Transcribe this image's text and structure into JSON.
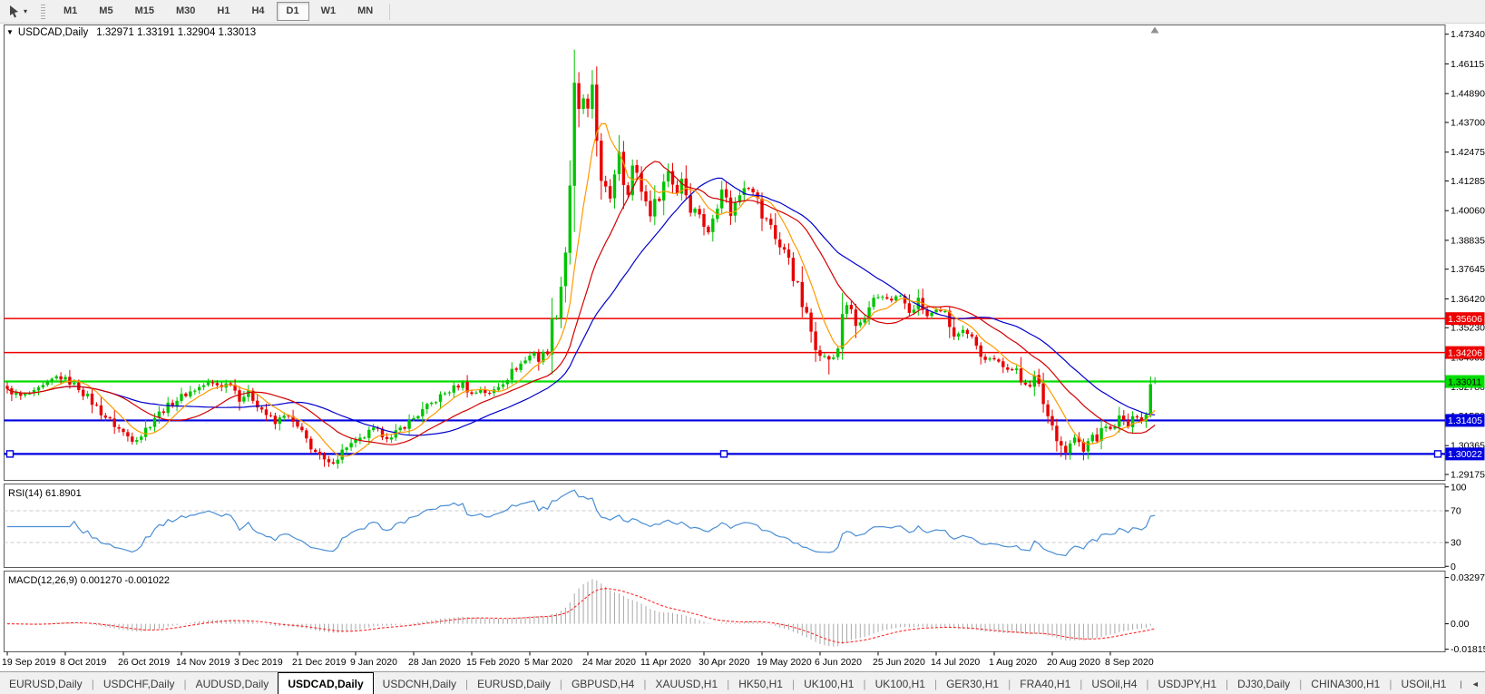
{
  "toolbar": {
    "timeframes": [
      "M1",
      "M5",
      "M15",
      "M30",
      "H1",
      "H4",
      "D1",
      "W1",
      "MN"
    ],
    "active_timeframe": "D1"
  },
  "chart": {
    "title_symbol": "USDCAD,Daily",
    "ohlc": "1.32971 1.33191 1.32904 1.33013",
    "dropdown_glyph": "▼",
    "price_ticks": [
      "1.47340",
      "1.46115",
      "1.44890",
      "1.43700",
      "1.42475",
      "1.41285",
      "1.40060",
      "1.38835",
      "1.37645",
      "1.36420",
      "1.35230",
      "1.34005",
      "1.32780",
      "1.31580",
      "1.30365",
      "1.29175"
    ],
    "hlines": [
      {
        "price": 1.35606,
        "label": "1.35606",
        "color": "#ee0000",
        "text": "#ffffff",
        "width": 1.5,
        "selected": false
      },
      {
        "price": 1.34206,
        "label": "1.34206",
        "color": "#ee0000",
        "text": "#ffffff",
        "width": 1.5,
        "selected": false
      },
      {
        "price": 1.33011,
        "label": "1.33011",
        "color": "#00dd00",
        "text": "#000000",
        "width": 2.2,
        "selected": false
      },
      {
        "price": 1.31405,
        "label": "1.31405",
        "color": "#0000e0",
        "text": "#ffffff",
        "width": 2.2,
        "selected": false
      },
      {
        "price": 1.30022,
        "label": "1.30022",
        "color": "#0000e0",
        "text": "#ffffff",
        "width": 2.2,
        "selected": true
      }
    ],
    "date_labels": [
      "19 Sep 2019",
      "8 Oct 2019",
      "26 Oct 2019",
      "14 Nov 2019",
      "3 Dec 2019",
      "21 Dec 2019",
      "9 Jan 2020",
      "28 Jan 2020",
      "15 Feb 2020",
      "5 Mar 2020",
      "24 Mar 2020",
      "11 Apr 2020",
      "30 Apr 2020",
      "19 May 2020",
      "6 Jun 2020",
      "25 Jun 2020",
      "14 Jul 2020",
      "1 Aug 2020",
      "20 Aug 2020",
      "8 Sep 2020"
    ]
  },
  "rsi": {
    "label": "RSI(14) 61.8901",
    "period": 14,
    "value": 61.8901,
    "ticks": [
      {
        "v": 100,
        "label": "100"
      },
      {
        "v": 70,
        "label": "70"
      },
      {
        "v": 30,
        "label": "30"
      },
      {
        "v": 0,
        "label": "0"
      }
    ],
    "levels": [
      70,
      30
    ]
  },
  "macd": {
    "label": "MACD(12,26,9) 0.001270 -0.001022",
    "value": 0.00127,
    "signal": -0.001022,
    "ticks": [
      {
        "v": 0.032972,
        "label": "0.032972"
      },
      {
        "v": 0,
        "label": "0.00"
      },
      {
        "v": -0.018154,
        "label": "-0.018154"
      }
    ]
  },
  "tabs": {
    "items": [
      "EURUSD,Daily",
      "USDCHF,Daily",
      "AUDUSD,Daily",
      "USDCAD,Daily",
      "USDCNH,Daily",
      "EURUSD,Daily",
      "GBPUSD,H4",
      "XAUUSD,H1",
      "HK50,H1",
      "UK100,H1",
      "UK100,H1",
      "GER30,H1",
      "FRA40,H1",
      "USOil,H4",
      "USDJPY,H1",
      "DJ30,Daily",
      "CHINA300,H1",
      "USOil,H1"
    ],
    "active_index": 3,
    "scroll_left_glyph": "◄",
    "scroll_right_glyph": "►"
  },
  "colors": {
    "up": "#00c400",
    "down": "#e80000",
    "ma_fast": "#ff9900",
    "ma_mid": "#d40000",
    "ma_slow": "#0000cc",
    "rsi_line": "#4a8ed5",
    "macd_bar": "#a8a8a8",
    "macd_signal": "#ff2a2a",
    "panel_border": "#5a5a5a",
    "level_dash": "#c8c8c8",
    "shift_marker": "#909090"
  },
  "chart_data": {
    "type": "candlestick",
    "symbol": "USDCAD",
    "timeframe": "Daily",
    "num_bars": 258,
    "bars_per_label": 13,
    "price_range_top": 1.4774,
    "price_range_bottom": 1.2891,
    "ma_periods": {
      "fast": 8,
      "mid": 20,
      "slow": 34
    },
    "levels": [
      1.35606,
      1.34206,
      1.33011,
      1.31405,
      1.30022
    ],
    "close_anchors": [
      [
        0,
        1.3265
      ],
      [
        3,
        1.324
      ],
      [
        6,
        1.3255
      ],
      [
        9,
        1.329
      ],
      [
        11,
        1.332
      ],
      [
        13,
        1.331
      ],
      [
        16,
        1.3275
      ],
      [
        19,
        1.3215
      ],
      [
        22,
        1.3155
      ],
      [
        25,
        1.3105
      ],
      [
        28,
        1.306
      ],
      [
        30,
        1.308
      ],
      [
        33,
        1.3155
      ],
      [
        36,
        1.32
      ],
      [
        39,
        1.324
      ],
      [
        42,
        1.3268
      ],
      [
        45,
        1.3295
      ],
      [
        48,
        1.3282
      ],
      [
        50,
        1.33
      ],
      [
        52,
        1.323
      ],
      [
        54,
        1.3255
      ],
      [
        56,
        1.321
      ],
      [
        58,
        1.3165
      ],
      [
        60,
        1.3125
      ],
      [
        62,
        1.3165
      ],
      [
        64,
        1.313
      ],
      [
        66,
        1.3085
      ],
      [
        68,
        1.3035
      ],
      [
        70,
        1.2985
      ],
      [
        72,
        1.2962
      ],
      [
        74,
        1.299
      ],
      [
        76,
        1.3035
      ],
      [
        79,
        1.306
      ],
      [
        82,
        1.3105
      ],
      [
        84,
        1.3082
      ],
      [
        86,
        1.3065
      ],
      [
        88,
        1.3105
      ],
      [
        91,
        1.315
      ],
      [
        94,
        1.3195
      ],
      [
        97,
        1.324
      ],
      [
        100,
        1.3275
      ],
      [
        102,
        1.3295
      ],
      [
        104,
        1.3248
      ],
      [
        106,
        1.3268
      ],
      [
        108,
        1.3248
      ],
      [
        110,
        1.3285
      ],
      [
        112,
        1.332
      ],
      [
        114,
        1.336
      ],
      [
        116,
        1.3388
      ],
      [
        118,
        1.3425
      ],
      [
        119,
        1.3385
      ],
      [
        120,
        1.341
      ],
      [
        121,
        1.3448
      ],
      [
        122,
        1.353
      ],
      [
        123,
        1.361
      ],
      [
        124,
        1.371
      ],
      [
        125,
        1.386
      ],
      [
        126,
        1.415
      ],
      [
        127,
        1.448
      ],
      [
        128,
        1.442
      ],
      [
        129,
        1.447
      ],
      [
        130,
        1.442
      ],
      [
        131,
        1.449
      ],
      [
        132,
        1.43
      ],
      [
        133,
        1.417
      ],
      [
        134,
        1.408
      ],
      [
        135,
        1.403
      ],
      [
        136,
        1.418
      ],
      [
        137,
        1.4255
      ],
      [
        138,
        1.414
      ],
      [
        139,
        1.409
      ],
      [
        140,
        1.419
      ],
      [
        141,
        1.4145
      ],
      [
        142,
        1.4095
      ],
      [
        144,
        1.399
      ],
      [
        146,
        1.4075
      ],
      [
        148,
        1.417
      ],
      [
        150,
        1.408
      ],
      [
        151,
        1.414
      ],
      [
        153,
        1.402
      ],
      [
        155,
        1.4
      ],
      [
        156,
        1.395
      ],
      [
        157,
        1.391
      ],
      [
        159,
        1.405
      ],
      [
        160,
        1.41
      ],
      [
        162,
        1.399
      ],
      [
        164,
        1.4075
      ],
      [
        165,
        1.411
      ],
      [
        167,
        1.41
      ],
      [
        169,
        1.398
      ],
      [
        171,
        1.395
      ],
      [
        173,
        1.3855
      ],
      [
        175,
        1.382
      ],
      [
        177,
        1.368
      ],
      [
        179,
        1.356
      ],
      [
        181,
        1.3455
      ],
      [
        183,
        1.34
      ],
      [
        185,
        1.339
      ],
      [
        186,
        1.344
      ],
      [
        187,
        1.359
      ],
      [
        188,
        1.362
      ],
      [
        190,
        1.353
      ],
      [
        192,
        1.3555
      ],
      [
        194,
        1.363
      ],
      [
        196,
        1.365
      ],
      [
        198,
        1.364
      ],
      [
        200,
        1.3655
      ],
      [
        202,
        1.358
      ],
      [
        204,
        1.364
      ],
      [
        206,
        1.357
      ],
      [
        208,
        1.359
      ],
      [
        210,
        1.358
      ],
      [
        212,
        1.35
      ],
      [
        214,
        1.351
      ],
      [
        216,
        1.35
      ],
      [
        218,
        1.34
      ],
      [
        220,
        1.339
      ],
      [
        222,
        1.338
      ],
      [
        224,
        1.336
      ],
      [
        226,
        1.334
      ],
      [
        227,
        1.33
      ],
      [
        229,
        1.329
      ],
      [
        230,
        1.332
      ],
      [
        231,
        1.327
      ],
      [
        232,
        1.322
      ],
      [
        233,
        1.316
      ],
      [
        234,
        1.312
      ],
      [
        235,
        1.308
      ],
      [
        236,
        1.304
      ],
      [
        237,
        1.301
      ],
      [
        238,
        1.304
      ],
      [
        239,
        1.307
      ],
      [
        240,
        1.304
      ],
      [
        241,
        1.301
      ],
      [
        242,
        1.305
      ],
      [
        243,
        1.308
      ],
      [
        244,
        1.306
      ],
      [
        245,
        1.309
      ],
      [
        246,
        1.312
      ],
      [
        247,
        1.31
      ],
      [
        248,
        1.313
      ],
      [
        249,
        1.3155
      ],
      [
        250,
        1.3135
      ],
      [
        251,
        1.3115
      ],
      [
        252,
        1.314
      ],
      [
        253,
        1.316
      ],
      [
        254,
        1.3145
      ],
      [
        255,
        1.317
      ],
      [
        256,
        1.329
      ],
      [
        257,
        1.33013
      ]
    ],
    "forced_bars": [
      {
        "bar": 71,
        "low": 1.2949
      },
      {
        "bar": 127,
        "high": 1.467
      },
      {
        "bar": 184,
        "low": 1.333
      },
      {
        "bar": 236,
        "low": 1.299
      },
      {
        "bar": 256,
        "open": 1.3165,
        "close": 1.329,
        "high": 1.3322,
        "low": 1.3152
      },
      {
        "bar": 257,
        "open": 1.32971,
        "high": 1.33191,
        "low": 1.32904,
        "close": 1.33013
      }
    ]
  }
}
